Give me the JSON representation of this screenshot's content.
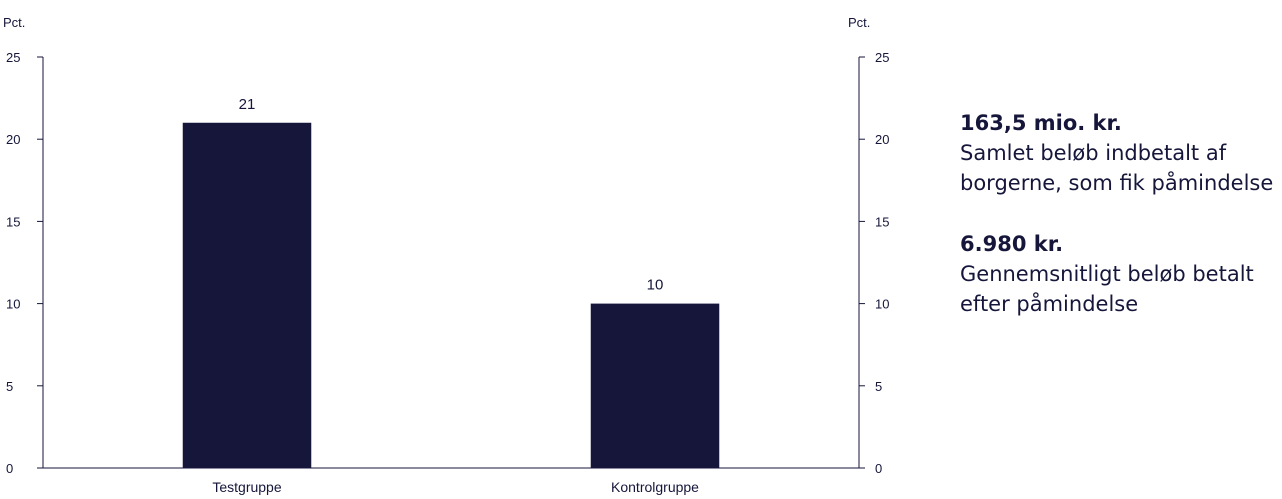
{
  "chart_data": {
    "type": "bar",
    "categories": [
      "Testgruppe",
      "Kontrolgruppe"
    ],
    "values": [
      21,
      10
    ],
    "data_labels": [
      "21",
      "10"
    ],
    "ylabel_left": "Pct.",
    "ylabel_right": "Pct.",
    "ylim": [
      0,
      25
    ],
    "yticks": [
      0,
      5,
      10,
      15,
      20,
      25
    ],
    "grid": false,
    "bar_color": "#15163a"
  },
  "stats": [
    {
      "value": "163,5 mio. kr.",
      "description": "Samlet beløb indbetalt af borgerne, som fik påmindelse"
    },
    {
      "value": "6.980 kr.",
      "description": "Gennemsnitligt beløb betalt efter påmindelse"
    }
  ]
}
